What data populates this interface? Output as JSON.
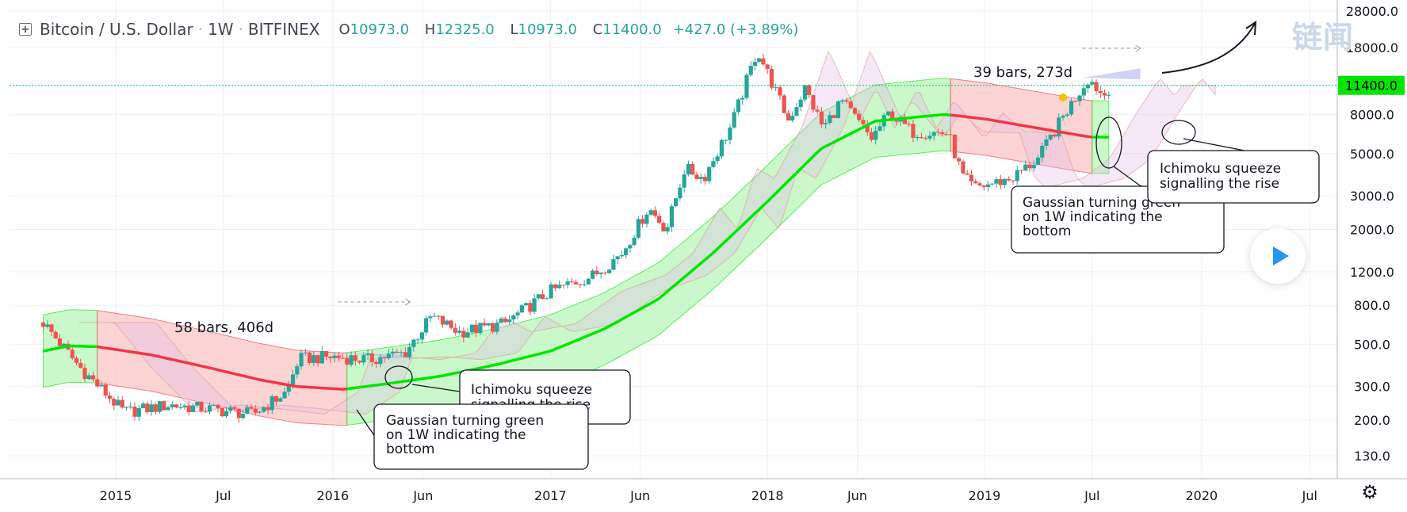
{
  "legend": {
    "symbol": "Bitcoin / U.S. Dollar",
    "interval": "1W",
    "exchange": "BITFINEX",
    "open_key": "O",
    "open": "10973.0",
    "high_key": "H",
    "high": "12325.0",
    "low_key": "L",
    "low": "10973.0",
    "close_key": "C",
    "close": "11400.0",
    "change": "+427.0 (+3.89%)"
  },
  "watermark": "链闻",
  "colors": {
    "up": "#26a69a",
    "down": "#ef5350",
    "gauss_green": "#00e600",
    "gauss_red": "#f23645",
    "band_green": "#b9f5b9",
    "band_red": "#fbc5c5",
    "price_line": "#00c853",
    "price_label_bg": "#00e600",
    "measure_fill": "#b4b4f5"
  },
  "chart_data": {
    "type": "candlestick",
    "symbol": "Bitcoin / U.S. Dollar",
    "interval": "1W",
    "exchange": "BITFINEX",
    "y_scale": "log",
    "ylim": [
      100,
      30000
    ],
    "y_ticks": [
      "28000.0",
      "18000.0",
      "8000.0",
      "5000.0",
      "3000.0",
      "2000.0",
      "1200.0",
      "800.0",
      "500.0",
      "300.0",
      "200.0",
      "130.0"
    ],
    "x_ticks": [
      "2015",
      "Jul",
      "2016",
      "Jun",
      "2017",
      "Jun",
      "2018",
      "Jun",
      "2019",
      "Jul",
      "2020",
      "Jul"
    ],
    "current_price": "11400.0",
    "close_path": [
      [
        "2014-09-01",
        650
      ],
      [
        "2014-11-01",
        380
      ],
      [
        "2015-01-15",
        220
      ],
      [
        "2015-04-01",
        240
      ],
      [
        "2015-06-01",
        230
      ],
      [
        "2015-08-20",
        215
      ],
      [
        "2015-10-15",
        280
      ],
      [
        "2015-11-05",
        420
      ],
      [
        "2016-01-01",
        430
      ],
      [
        "2016-03-01",
        415
      ],
      [
        "2016-05-01",
        450
      ],
      [
        "2016-06-15",
        700
      ],
      [
        "2016-08-01",
        580
      ],
      [
        "2016-10-15",
        640
      ],
      [
        "2017-01-01",
        950
      ],
      [
        "2017-03-15",
        1150
      ],
      [
        "2017-05-01",
        1500
      ],
      [
        "2017-06-15",
        2600
      ],
      [
        "2017-07-15",
        2000
      ],
      [
        "2017-08-15",
        4200
      ],
      [
        "2017-09-15",
        3700
      ],
      [
        "2017-11-01",
        7000
      ],
      [
        "2017-12-15",
        17500
      ],
      [
        "2018-02-05",
        7500
      ],
      [
        "2018-03-05",
        11000
      ],
      [
        "2018-04-05",
        6800
      ],
      [
        "2018-05-05",
        9500
      ],
      [
        "2018-06-25",
        6000
      ],
      [
        "2018-07-25",
        8200
      ],
      [
        "2018-09-01",
        6500
      ],
      [
        "2018-11-01",
        6400
      ],
      [
        "2018-11-25",
        3800
      ],
      [
        "2018-12-15",
        3300
      ],
      [
        "2019-02-15",
        3700
      ],
      [
        "2019-04-01",
        4700
      ],
      [
        "2019-05-15",
        8000
      ],
      [
        "2019-06-25",
        12500
      ],
      [
        "2019-07-20",
        10000
      ],
      [
        "2019-08-01",
        11400
      ]
    ],
    "gaussian_channel": [
      [
        "2014-09-01",
        460,
        "green"
      ],
      [
        "2014-10-15",
        490,
        "green"
      ],
      [
        "2014-12-01",
        485,
        "red"
      ],
      [
        "2015-03-01",
        440,
        "red"
      ],
      [
        "2015-06-01",
        380,
        "red"
      ],
      [
        "2015-09-01",
        325,
        "red"
      ],
      [
        "2015-11-01",
        300,
        "red"
      ],
      [
        "2016-01-20",
        290,
        "green"
      ],
      [
        "2016-04-01",
        310,
        "green"
      ],
      [
        "2016-07-01",
        340,
        "green"
      ],
      [
        "2016-10-01",
        390,
        "green"
      ],
      [
        "2017-01-01",
        460,
        "green"
      ],
      [
        "2017-04-01",
        600,
        "green"
      ],
      [
        "2017-07-01",
        860,
        "green"
      ],
      [
        "2017-10-01",
        1500,
        "green"
      ],
      [
        "2018-01-01",
        2800,
        "green"
      ],
      [
        "2018-04-01",
        5300,
        "green"
      ],
      [
        "2018-07-01",
        7400,
        "green"
      ],
      [
        "2018-10-20",
        8000,
        "green"
      ],
      [
        "2018-11-01",
        8000,
        "red"
      ],
      [
        "2019-01-01",
        7600,
        "red"
      ],
      [
        "2019-04-01",
        6800,
        "red"
      ],
      [
        "2019-06-15",
        6200,
        "red"
      ],
      [
        "2019-07-01",
        6100,
        "green"
      ],
      [
        "2019-08-01",
        6100,
        "green"
      ]
    ],
    "annotations": [
      {
        "text": "58 bars, 406d"
      },
      {
        "text": "39 bars, 273d"
      },
      {
        "text": "Ichimoku squeeze signalling the rise"
      },
      {
        "text": "Gaussian turning green on 1W indicating the bottom"
      },
      {
        "text": "Ichimoku squeeze signalling the rise"
      },
      {
        "text": "Gaussian turning green on 1W indicating the bottom"
      }
    ]
  },
  "notes": {
    "measure_1": "58 bars, 406d",
    "measure_2": "39 bars, 273d",
    "ichi_1_line1": "Ichimoku squeeze",
    "ichi_1_line2": "signalling the rise",
    "gauss_1_line1": "Gaussian turning green",
    "gauss_1_line2": "on 1W indicating the",
    "gauss_1_line3": "bottom",
    "ichi_2_line1": "Ichimoku squeeze",
    "ichi_2_line2": "signalling the rise",
    "gauss_2_line1": "Gaussian turning green",
    "gauss_2_line2": "on 1W indicating the",
    "gauss_2_line3": "bottom"
  }
}
